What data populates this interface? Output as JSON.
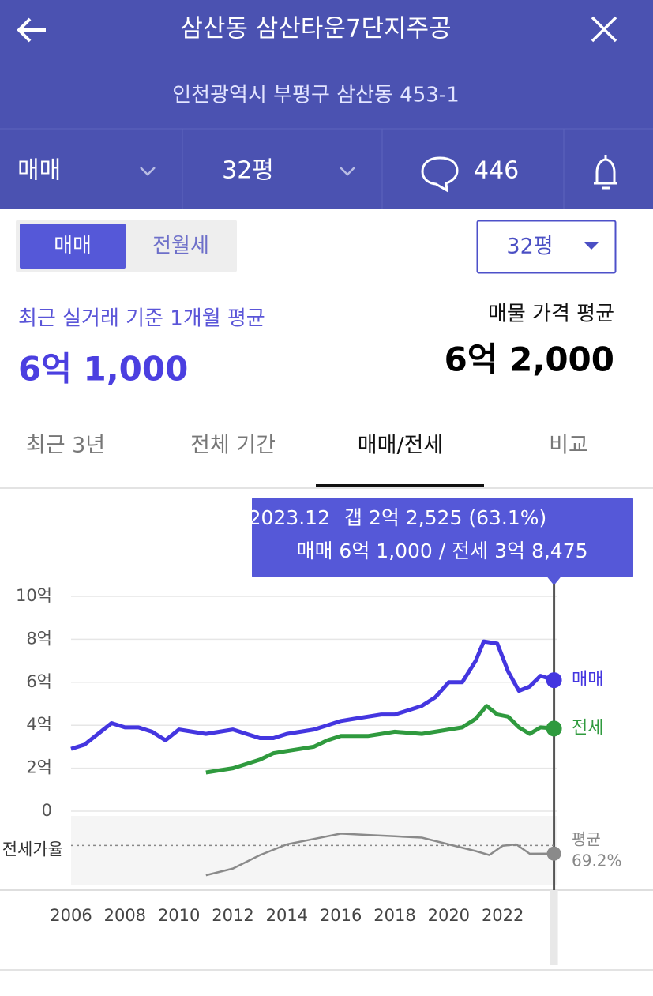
{
  "header": {
    "title": "삼산동 삼산타운7단지주공",
    "address": "인천광역시 부평구 삼산동 453-1"
  },
  "toolbar": {
    "deal_type": "매매",
    "size": "32평",
    "comments": "446"
  },
  "toggle": {
    "items": [
      "매매",
      "전월세"
    ],
    "size_select": "32평"
  },
  "summary": {
    "left_label": "최근 실거래 기준 1개월 평균",
    "left_value": "6억 1,000",
    "right_label": "매물 가격 평균",
    "right_value": "6억 2,000"
  },
  "tabs": {
    "items": [
      "최근 3년",
      "전체 기간",
      "매매/전세",
      "비교"
    ],
    "active": 2
  },
  "tooltip": {
    "date": "2023.12",
    "gap": "갭 2억 2,525 (63.1%)",
    "prices": "매매 6억 1,000 / 전세 3억 8,475"
  },
  "chart_data": [
    {
      "type": "line",
      "xlim": [
        2006,
        2024
      ],
      "xticks": [
        2006,
        2008,
        2010,
        2012,
        2014,
        2016,
        2018,
        2020,
        2022
      ],
      "ylim": [
        0,
        10
      ],
      "yticks": [
        0,
        {
          "value": 2,
          "label": "2억"
        },
        {
          "value": 4,
          "label": "4억"
        },
        {
          "value": 6,
          "label": "6억"
        },
        {
          "value": 8,
          "label": "8억"
        },
        {
          "value": 10,
          "label": "10억"
        }
      ],
      "grid": true,
      "series": [
        {
          "name": "매매",
          "color": "#4436e0",
          "x": [
            2006,
            2006.5,
            2007,
            2007.5,
            2008,
            2008.5,
            2009,
            2009.5,
            2010,
            2010.5,
            2011,
            2011.5,
            2012,
            2012.5,
            2013,
            2013.5,
            2014,
            2014.5,
            2015,
            2015.5,
            2016,
            2016.5,
            2017,
            2017.5,
            2018,
            2018.5,
            2019,
            2019.5,
            2020,
            2020.5,
            2021,
            2021.3,
            2021.8,
            2022.2,
            2022.6,
            2023,
            2023.4,
            2023.9
          ],
          "values": [
            2.9,
            3.1,
            3.6,
            4.1,
            3.9,
            3.9,
            3.7,
            3.3,
            3.8,
            3.7,
            3.6,
            3.7,
            3.8,
            3.6,
            3.4,
            3.4,
            3.6,
            3.7,
            3.8,
            4.0,
            4.2,
            4.3,
            4.4,
            4.5,
            4.5,
            4.7,
            4.9,
            5.3,
            6.0,
            6.0,
            7.0,
            7.9,
            7.8,
            6.5,
            5.6,
            5.8,
            6.3,
            6.1
          ]
        },
        {
          "name": "전세",
          "color": "#2f9a3e",
          "x": [
            2011,
            2012,
            2013,
            2013.5,
            2014,
            2015,
            2015.5,
            2016,
            2017,
            2017.5,
            2018,
            2019,
            2019.5,
            2020,
            2020.5,
            2021,
            2021.4,
            2021.8,
            2022.2,
            2022.6,
            2023,
            2023.4,
            2023.9
          ],
          "values": [
            1.8,
            2.0,
            2.4,
            2.7,
            2.8,
            3.0,
            3.3,
            3.5,
            3.5,
            3.6,
            3.7,
            3.6,
            3.7,
            3.8,
            3.9,
            4.3,
            4.9,
            4.5,
            4.4,
            3.9,
            3.6,
            3.9,
            3.8475
          ]
        }
      ]
    },
    {
      "type": "line",
      "y_label": "전세가율",
      "ylim": [
        40,
        90
      ],
      "average": {
        "label": "평균",
        "value": 69.2,
        "value_label": "69.2%"
      },
      "series": [
        {
          "color": "#8a8a8a",
          "x": [
            2011,
            2012,
            2013,
            2014,
            2015,
            2016,
            2017,
            2018,
            2019,
            2020,
            2021,
            2021.5,
            2022,
            2022.5,
            2023,
            2023.9
          ],
          "values": [
            47,
            52,
            62,
            70,
            74,
            78,
            77,
            76,
            75,
            70,
            65,
            62,
            69,
            70,
            63,
            63.1
          ]
        }
      ]
    }
  ]
}
